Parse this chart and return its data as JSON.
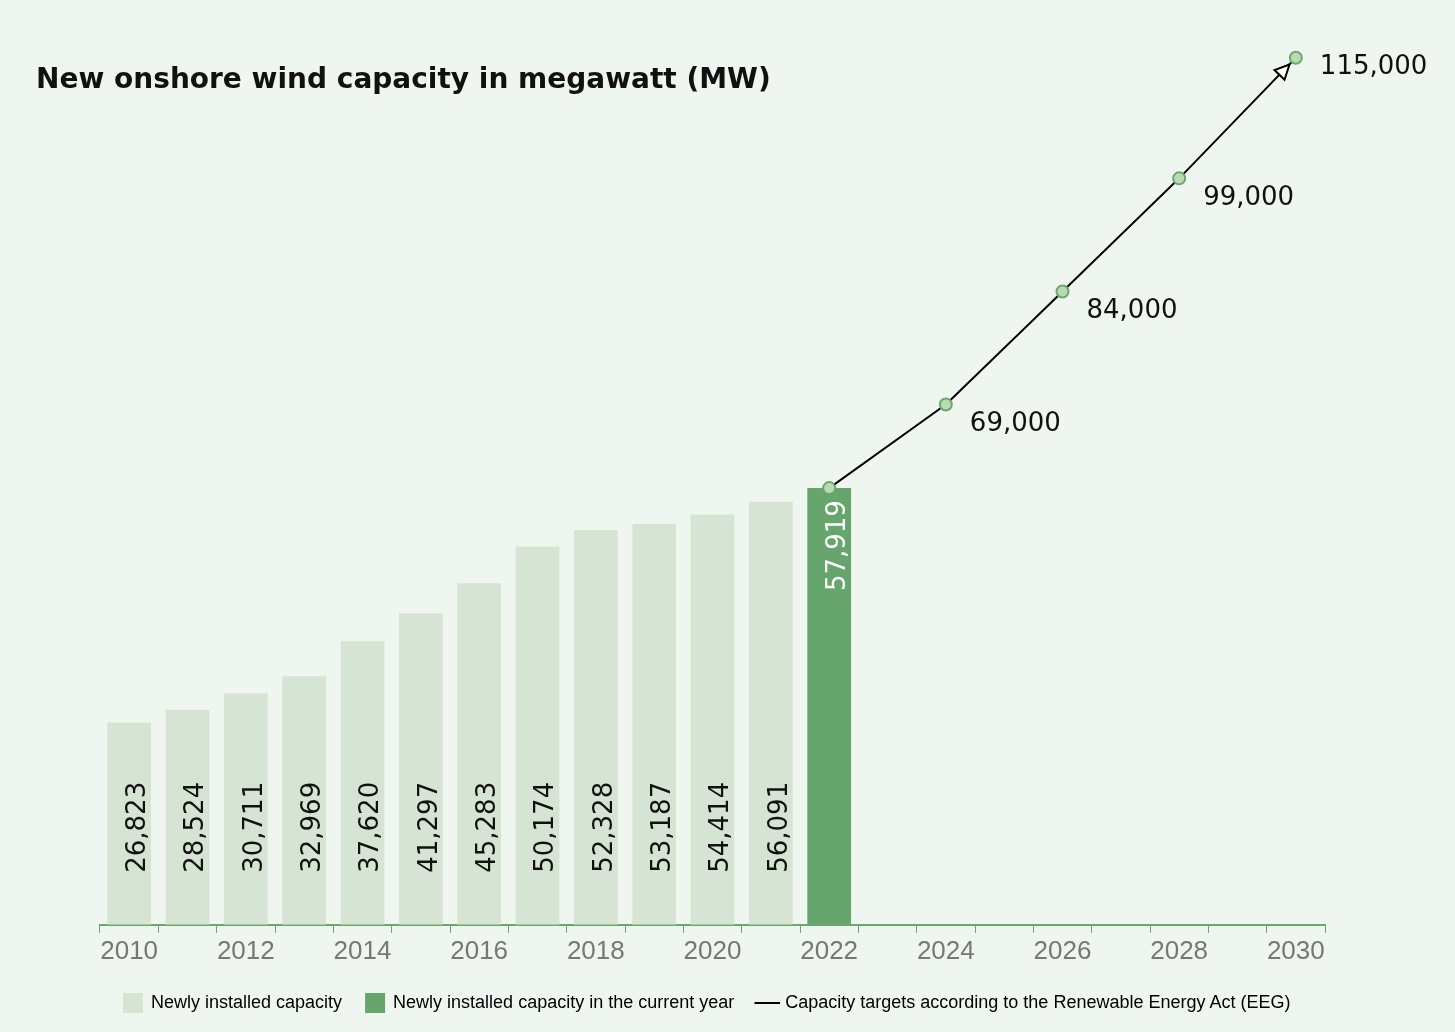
{
  "chart_data": {
    "type": "bar",
    "title": "New onshore wind capacity in megawatt (MW)",
    "categories": [
      "2010",
      null,
      "2012",
      null,
      "2014",
      null,
      "2016",
      null,
      "2018",
      null,
      "2020",
      null,
      "2022",
      null,
      "2024",
      null,
      "2026",
      null,
      "2028",
      null,
      "2030"
    ],
    "stacked": true,
    "legend": "bottom",
    "grid": false,
    "tick_labels": "x",
    "series": [
      {
        "name": "Newly installed capacity",
        "color": "#d6e4d3",
        "values": [
          26823,
          28524,
          30711,
          32969,
          37620,
          41297,
          45283,
          50174,
          52328,
          53187,
          54414,
          56091,
          null,
          null,
          null,
          null,
          null,
          null,
          null,
          null,
          null
        ],
        "value_labels": [
          "26,823",
          "28,524",
          "30,711",
          "32,969",
          "37,620",
          "41,297",
          "45,283",
          "50,174",
          "52,328",
          "53,187",
          "54,414",
          "56,091",
          null,
          null,
          null,
          null,
          null,
          null,
          null,
          null,
          null
        ]
      },
      {
        "name": "Newly installed capacity in the current year",
        "color": "#66a66c",
        "values": [
          null,
          null,
          null,
          null,
          null,
          null,
          null,
          null,
          null,
          null,
          null,
          null,
          57919,
          null,
          null,
          null,
          null,
          null,
          null,
          null,
          null
        ],
        "value_labels": [
          null,
          null,
          null,
          null,
          null,
          null,
          null,
          null,
          null,
          null,
          null,
          null,
          "57,919",
          null,
          null,
          null,
          null,
          null,
          null,
          null,
          null
        ]
      },
      {
        "name": "Capacity targets according to the Renewable Energy Act (EEG)",
        "type": "line",
        "color": "#000000",
        "marker": "circle",
        "line_style": "solid",
        "values": [
          null,
          null,
          null,
          null,
          null,
          null,
          null,
          null,
          null,
          null,
          null,
          null,
          57919,
          null,
          69000,
          null,
          84000,
          null,
          99000,
          null,
          115000
        ],
        "value_labels": [
          null,
          null,
          null,
          null,
          null,
          null,
          null,
          null,
          null,
          null,
          null,
          null,
          null,
          null,
          "69,000",
          null,
          "84,000",
          null,
          "99,000",
          null,
          "115,000"
        ]
      }
    ]
  }
}
